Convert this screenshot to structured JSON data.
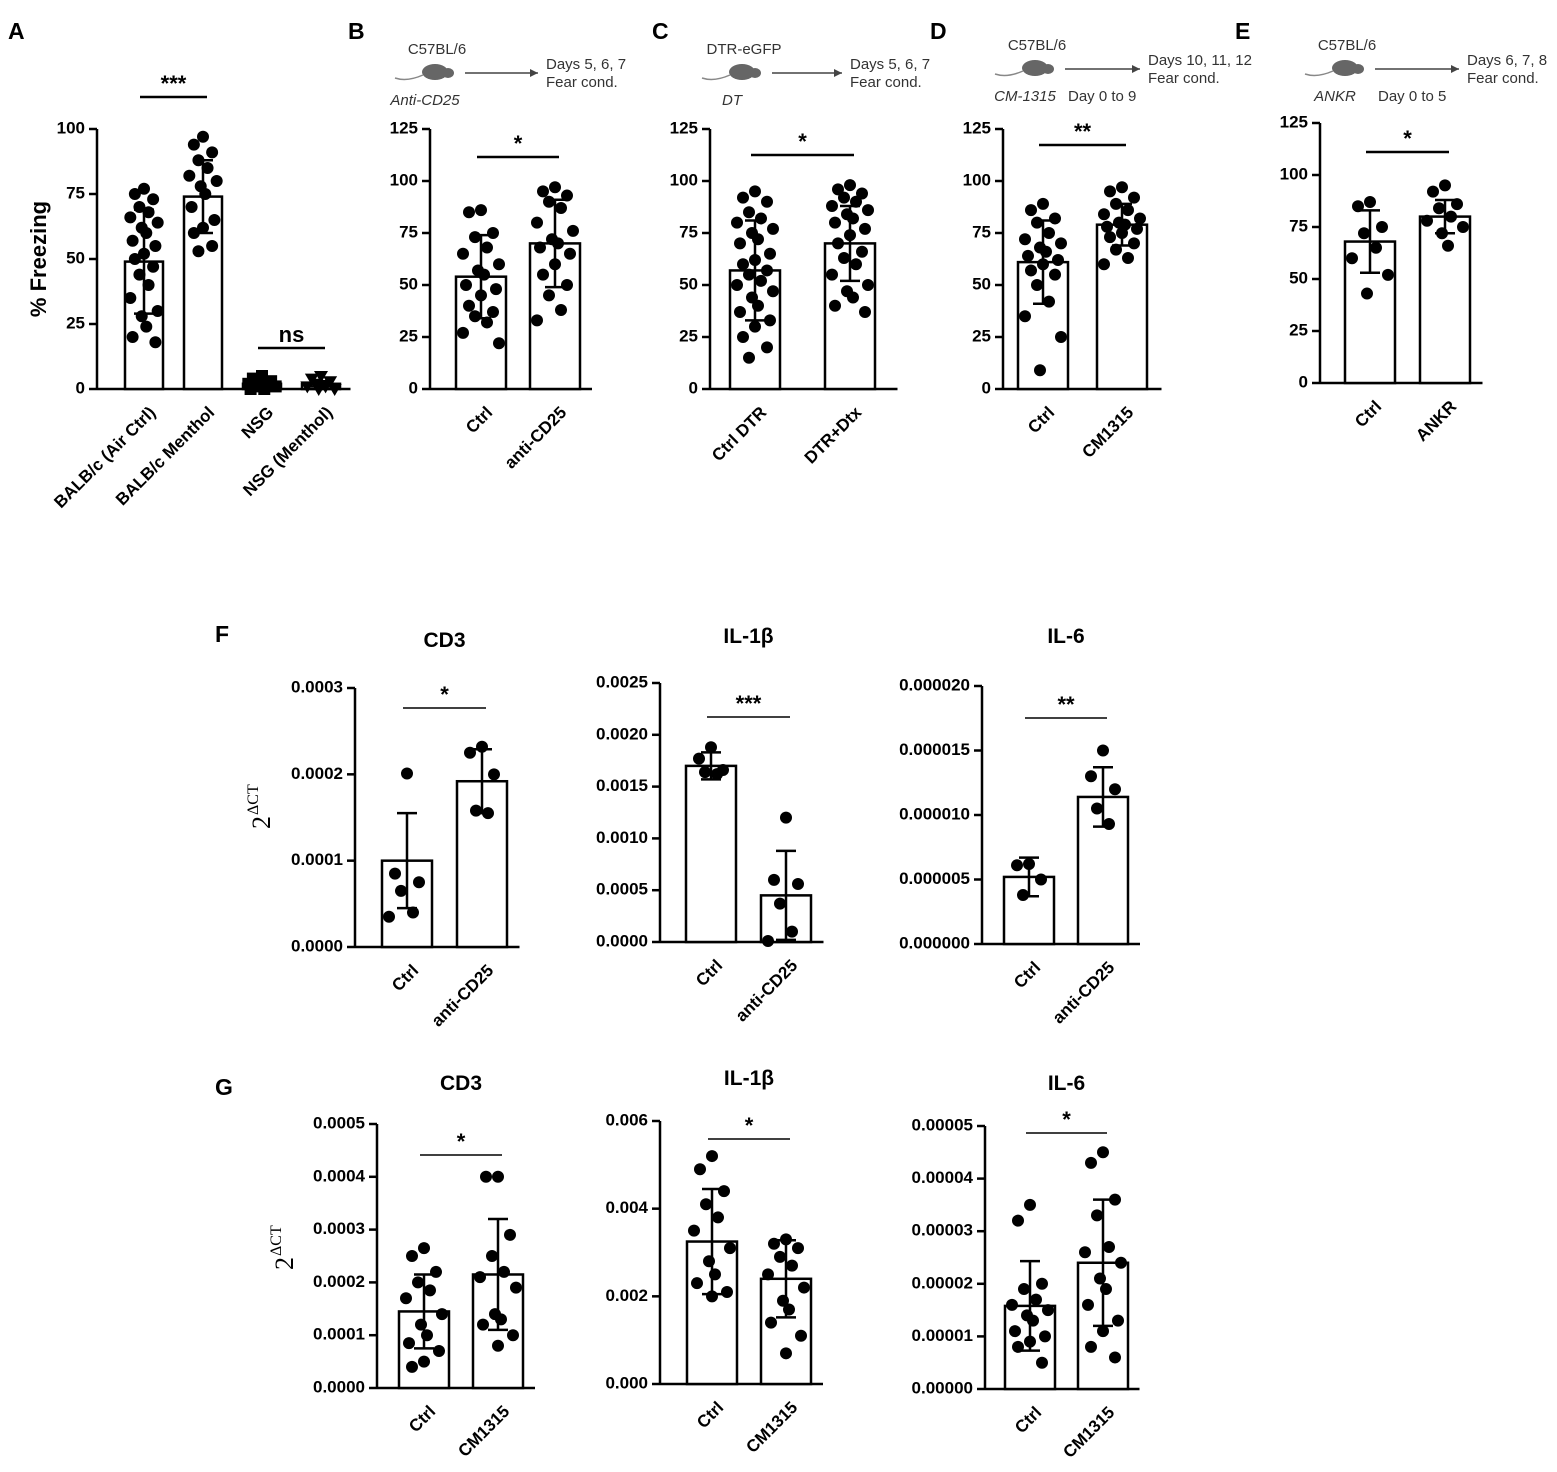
{
  "chart_data": [
    {
      "type": "bar",
      "panel": "A",
      "ylabel": "% Freezing",
      "categories": [
        "BALB/c (Air Ctrl)",
        "BALB/c Menthol",
        "NSG",
        "NSG (Menthol)"
      ],
      "markers": [
        "circle",
        "circle",
        "square",
        "triangle-down"
      ],
      "values": [
        49,
        74,
        2,
        2
      ],
      "errors": [
        20,
        14,
        1,
        1
      ],
      "points": [
        [
          77,
          75,
          73,
          70,
          68,
          66,
          64,
          62,
          60,
          57,
          55,
          52,
          50,
          47,
          44,
          40,
          35,
          30,
          28,
          24,
          20,
          18
        ],
        [
          97,
          94,
          91,
          88,
          85,
          82,
          80,
          78,
          75,
          70,
          65,
          62,
          60,
          55,
          53
        ],
        [
          5,
          4,
          3,
          3,
          2,
          2,
          1,
          1,
          0,
          0
        ],
        [
          5,
          4,
          3,
          2,
          1,
          1,
          0,
          0
        ]
      ],
      "significance": [
        "***",
        "ns"
      ],
      "ylim": [
        0,
        100
      ],
      "yticks": [
        0,
        25,
        50,
        75,
        100
      ]
    },
    {
      "type": "bar",
      "panel": "B",
      "header": {
        "strain": "C57BL/6",
        "treatment": "Anti-CD25",
        "days": "Days 5, 6, 7",
        "readout": "Fear cond."
      },
      "categories": [
        "Ctrl",
        "anti-CD25"
      ],
      "values": [
        54,
        70
      ],
      "errors": [
        20,
        21
      ],
      "points": [
        [
          86,
          85,
          75,
          73,
          68,
          65,
          60,
          57,
          55,
          50,
          48,
          45,
          40,
          37,
          35,
          32,
          27,
          22
        ],
        [
          97,
          95,
          93,
          90,
          87,
          80,
          76,
          72,
          70,
          68,
          65,
          60,
          55,
          50,
          45,
          38,
          33
        ]
      ],
      "significance": [
        "*"
      ],
      "ylim": [
        0,
        125
      ],
      "yticks": [
        0,
        25,
        50,
        75,
        100,
        125
      ]
    },
    {
      "type": "bar",
      "panel": "C",
      "header": {
        "strain": "DTR-eGFP",
        "treatment": "DT",
        "days": "Days 5, 6, 7",
        "readout": "Fear cond."
      },
      "categories": [
        "Ctrl DTR",
        "DTR+Dtx"
      ],
      "values": [
        57,
        70
      ],
      "errors": [
        24,
        18
      ],
      "points": [
        [
          95,
          92,
          90,
          85,
          82,
          80,
          77,
          75,
          72,
          70,
          65,
          62,
          60,
          57,
          55,
          52,
          50,
          47,
          44,
          40,
          37,
          33,
          30,
          25,
          20,
          15
        ],
        [
          98,
          96,
          94,
          92,
          90,
          88,
          86,
          84,
          82,
          80,
          77,
          74,
          70,
          66,
          63,
          60,
          55,
          50,
          47,
          44,
          40,
          37
        ]
      ],
      "significance": [
        "*"
      ],
      "ylim": [
        0,
        125
      ],
      "yticks": [
        0,
        25,
        50,
        75,
        100,
        125
      ]
    },
    {
      "type": "bar",
      "panel": "D",
      "header": {
        "strain": "C57BL/6",
        "treatment": "CM-1315",
        "schedule": "Day 0 to 9",
        "days": "Days 10, 11,  12",
        "readout": "Fear cond."
      },
      "categories": [
        "Ctrl",
        "CM1315"
      ],
      "values": [
        61,
        79
      ],
      "errors": [
        20,
        10
      ],
      "points": [
        [
          89,
          86,
          82,
          80,
          75,
          72,
          70,
          68,
          66,
          64,
          62,
          60,
          57,
          55,
          50,
          42,
          35,
          25,
          9
        ],
        [
          97,
          95,
          92,
          89,
          86,
          84,
          82,
          80,
          79,
          78,
          77,
          75,
          73,
          70,
          67,
          63,
          60
        ]
      ],
      "significance": [
        "**"
      ],
      "ylim": [
        0,
        125
      ],
      "yticks": [
        0,
        25,
        50,
        75,
        100,
        125
      ]
    },
    {
      "type": "bar",
      "panel": "E",
      "header": {
        "strain": "C57BL/6",
        "treatment": "ANKR",
        "schedule": "Day 0 to 5",
        "days": "Days 6, 7, 8",
        "readout": "Fear cond."
      },
      "categories": [
        "Ctrl",
        "ANKR"
      ],
      "values": [
        68,
        80
      ],
      "errors": [
        15,
        8
      ],
      "points": [
        [
          87,
          85,
          75,
          72,
          65,
          60,
          52,
          43
        ],
        [
          95,
          92,
          86,
          84,
          80,
          78,
          75,
          72,
          66
        ]
      ],
      "significance": [
        "*"
      ],
      "ylim": [
        0,
        125
      ],
      "yticks": [
        0,
        25,
        50,
        75,
        100,
        125
      ]
    },
    {
      "type": "bar",
      "panel": "F",
      "title": "CD3",
      "ylabel": {
        "base": "2",
        "exp": "ΔCT"
      },
      "categories": [
        "Ctrl",
        "anti-CD25"
      ],
      "values": [
        0.0001,
        0.000192
      ],
      "errors": [
        5.5e-05,
        3.7e-05
      ],
      "points": [
        [
          0.000201,
          8.5e-05,
          7.5e-05,
          6.5e-05,
          4e-05,
          3.5e-05
        ],
        [
          0.000232,
          0.000225,
          0.0002,
          0.000158,
          0.000155
        ]
      ],
      "significance": [
        "*"
      ],
      "ylim": [
        0,
        0.0003
      ],
      "yticks": [
        {
          "value": 0,
          "label": "0.0000"
        },
        {
          "value": 0.0001,
          "label": "0.0001"
        },
        {
          "value": 0.0002,
          "label": "0.0002"
        },
        {
          "value": 0.0003,
          "label": "0.0003"
        }
      ]
    },
    {
      "type": "bar",
      "title": "IL-1β",
      "categories": [
        "Ctrl",
        "anti-CD25"
      ],
      "values": [
        0.0017,
        0.00045
      ],
      "errors": [
        0.00013,
        0.00043
      ],
      "points": [
        [
          0.00188,
          0.00177,
          0.00166,
          0.00164,
          0.00162
        ],
        [
          0.0012,
          0.0006,
          0.00056,
          0.00037,
          0.0001,
          1e-05
        ]
      ],
      "significance": [
        "***"
      ],
      "ylim": [
        0,
        0.0025
      ],
      "yticks": [
        {
          "value": 0,
          "label": "0.0000"
        },
        {
          "value": 0.0005,
          "label": "0.0005"
        },
        {
          "value": 0.001,
          "label": "0.0010"
        },
        {
          "value": 0.0015,
          "label": "0.0015"
        },
        {
          "value": 0.002,
          "label": "0.0020"
        },
        {
          "value": 0.0025,
          "label": "0.0025"
        }
      ]
    },
    {
      "type": "bar",
      "title": "IL-6",
      "categories": [
        "Ctrl",
        "anti-CD25"
      ],
      "values": [
        5.2e-06,
        1.14e-05
      ],
      "errors": [
        1.5e-06,
        2.3e-06
      ],
      "points": [
        [
          6.2e-06,
          6.1e-06,
          5e-06,
          3.8e-06
        ],
        [
          1.5e-05,
          1.3e-05,
          1.2e-05,
          1.05e-05,
          9.3e-06
        ]
      ],
      "significance": [
        "**"
      ],
      "ylim": [
        0,
        2e-05
      ],
      "yticks": [
        {
          "value": 0,
          "label": "0.000000"
        },
        {
          "value": 5e-06,
          "label": "0.000005"
        },
        {
          "value": 1e-05,
          "label": "0.000010"
        },
        {
          "value": 1.5e-05,
          "label": "0.000015"
        },
        {
          "value": 2e-05,
          "label": "0.000020"
        }
      ]
    },
    {
      "type": "bar",
      "panel": "G",
      "title": "CD3",
      "ylabel": {
        "base": "2",
        "exp": "ΔCT"
      },
      "categories": [
        "Ctrl",
        "CM1315"
      ],
      "values": [
        0.000145,
        0.000215
      ],
      "errors": [
        7e-05,
        0.000105
      ],
      "points": [
        [
          0.000265,
          0.00025,
          0.00022,
          0.0002,
          0.000185,
          0.00017,
          0.00014,
          0.00012,
          0.0001,
          8.5e-05,
          7e-05,
          5e-05,
          4e-05
        ],
        [
          0.0004,
          0.0004,
          0.00029,
          0.00025,
          0.00022,
          0.00021,
          0.00019,
          0.00014,
          0.00013,
          0.00012,
          0.0001,
          8e-05
        ]
      ],
      "significance": [
        "*"
      ],
      "ylim": [
        0,
        0.0005
      ],
      "yticks": [
        {
          "value": 0,
          "label": "0.0000"
        },
        {
          "value": 0.0001,
          "label": "0.0001"
        },
        {
          "value": 0.0002,
          "label": "0.0002"
        },
        {
          "value": 0.0003,
          "label": "0.0003"
        },
        {
          "value": 0.0004,
          "label": "0.0004"
        },
        {
          "value": 0.0005,
          "label": "0.0005"
        }
      ]
    },
    {
      "type": "bar",
      "title": "IL-1β",
      "categories": [
        "Ctrl",
        "CM1315"
      ],
      "values": [
        0.00325,
        0.0024
      ],
      "errors": [
        0.0012,
        0.00088
      ],
      "points": [
        [
          0.0052,
          0.0049,
          0.0044,
          0.0041,
          0.0038,
          0.0035,
          0.0031,
          0.0028,
          0.0025,
          0.0023,
          0.0021,
          0.002
        ],
        [
          0.0033,
          0.0032,
          0.0031,
          0.0029,
          0.0027,
          0.0025,
          0.0022,
          0.0019,
          0.0017,
          0.0014,
          0.0011,
          0.0007
        ]
      ],
      "significance": [
        "*"
      ],
      "ylim": [
        0,
        0.006
      ],
      "yticks": [
        {
          "value": 0,
          "label": "0.000"
        },
        {
          "value": 0.002,
          "label": "0.002"
        },
        {
          "value": 0.004,
          "label": "0.004"
        },
        {
          "value": 0.006,
          "label": "0.006"
        }
      ]
    },
    {
      "type": "bar",
      "title": "IL-6",
      "categories": [
        "Ctrl",
        "CM1315"
      ],
      "values": [
        1.58e-05,
        2.4e-05
      ],
      "errors": [
        8.5e-06,
        1.2e-05
      ],
      "points": [
        [
          3.5e-05,
          3.2e-05,
          2e-05,
          1.9e-05,
          1.7e-05,
          1.6e-05,
          1.5e-05,
          1.4e-05,
          1.3e-05,
          1.1e-05,
          1e-05,
          9e-06,
          8e-06,
          5e-06
        ],
        [
          4.5e-05,
          4.3e-05,
          3.6e-05,
          3.3e-05,
          2.7e-05,
          2.6e-05,
          2.4e-05,
          2.1e-05,
          1.9e-05,
          1.6e-05,
          1.3e-05,
          1.1e-05,
          8e-06,
          6e-06
        ]
      ],
      "significance": [
        "*"
      ],
      "ylim": [
        0,
        5e-05
      ],
      "yticks": [
        {
          "value": 0,
          "label": "0.00000"
        },
        {
          "value": 1e-05,
          "label": "0.00001"
        },
        {
          "value": 2e-05,
          "label": "0.00002"
        },
        {
          "value": 3e-05,
          "label": "0.00003"
        },
        {
          "value": 4e-05,
          "label": "0.00004"
        },
        {
          "value": 5e-05,
          "label": "0.00005"
        }
      ]
    }
  ]
}
